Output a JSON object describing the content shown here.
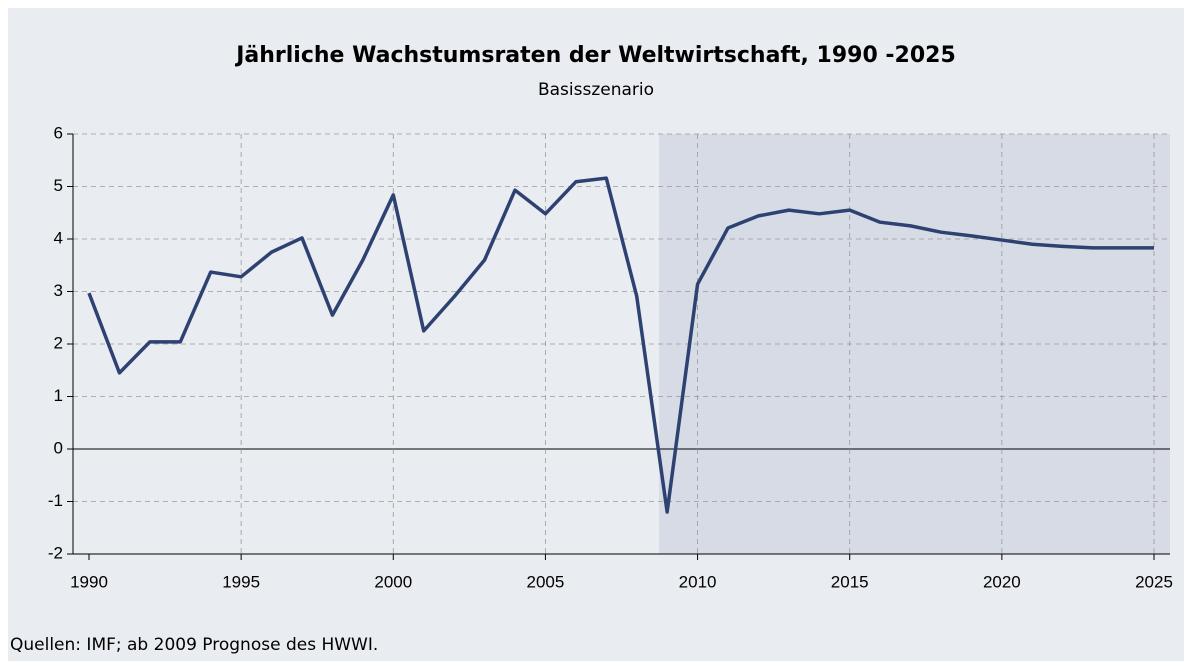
{
  "chart_data": {
    "type": "line",
    "title": "Jährliche Wachstumsraten der Weltwirtschaft, 1990 -2025",
    "subtitle": "Basisszenario",
    "note": "Quellen: IMF; ab 2009 Prognose des HWWI.",
    "x": [
      1990,
      1991,
      1992,
      1993,
      1994,
      1995,
      1996,
      1997,
      1998,
      1999,
      2000,
      2001,
      2002,
      2003,
      2004,
      2005,
      2006,
      2007,
      2008,
      2009,
      2010,
      2011,
      2012,
      2013,
      2014,
      2015,
      2016,
      2017,
      2018,
      2019,
      2020,
      2021,
      2022,
      2023,
      2024,
      2025
    ],
    "series": [
      {
        "name": "Wachstumsrate",
        "color": "#2e4272",
        "values": [
          2.97,
          1.45,
          2.04,
          2.04,
          3.37,
          3.28,
          3.75,
          4.02,
          2.55,
          3.6,
          4.84,
          2.25,
          2.9,
          3.6,
          4.93,
          4.48,
          5.09,
          5.16,
          2.91,
          -1.2,
          3.14,
          4.21,
          4.44,
          4.55,
          4.48,
          4.55,
          4.32,
          4.25,
          4.13,
          4.06,
          3.98,
          3.9,
          3.86,
          3.83,
          3.83,
          3.83
        ]
      }
    ],
    "xlim": [
      1990,
      2025
    ],
    "xticks": [
      1990,
      1995,
      2000,
      2005,
      2010,
      2015,
      2020,
      2025
    ],
    "ylim": [
      -2,
      6
    ],
    "yticks": [
      -2,
      -1,
      0,
      1,
      2,
      3,
      4,
      5,
      6
    ],
    "shaded_from": 2009,
    "grid": true
  }
}
